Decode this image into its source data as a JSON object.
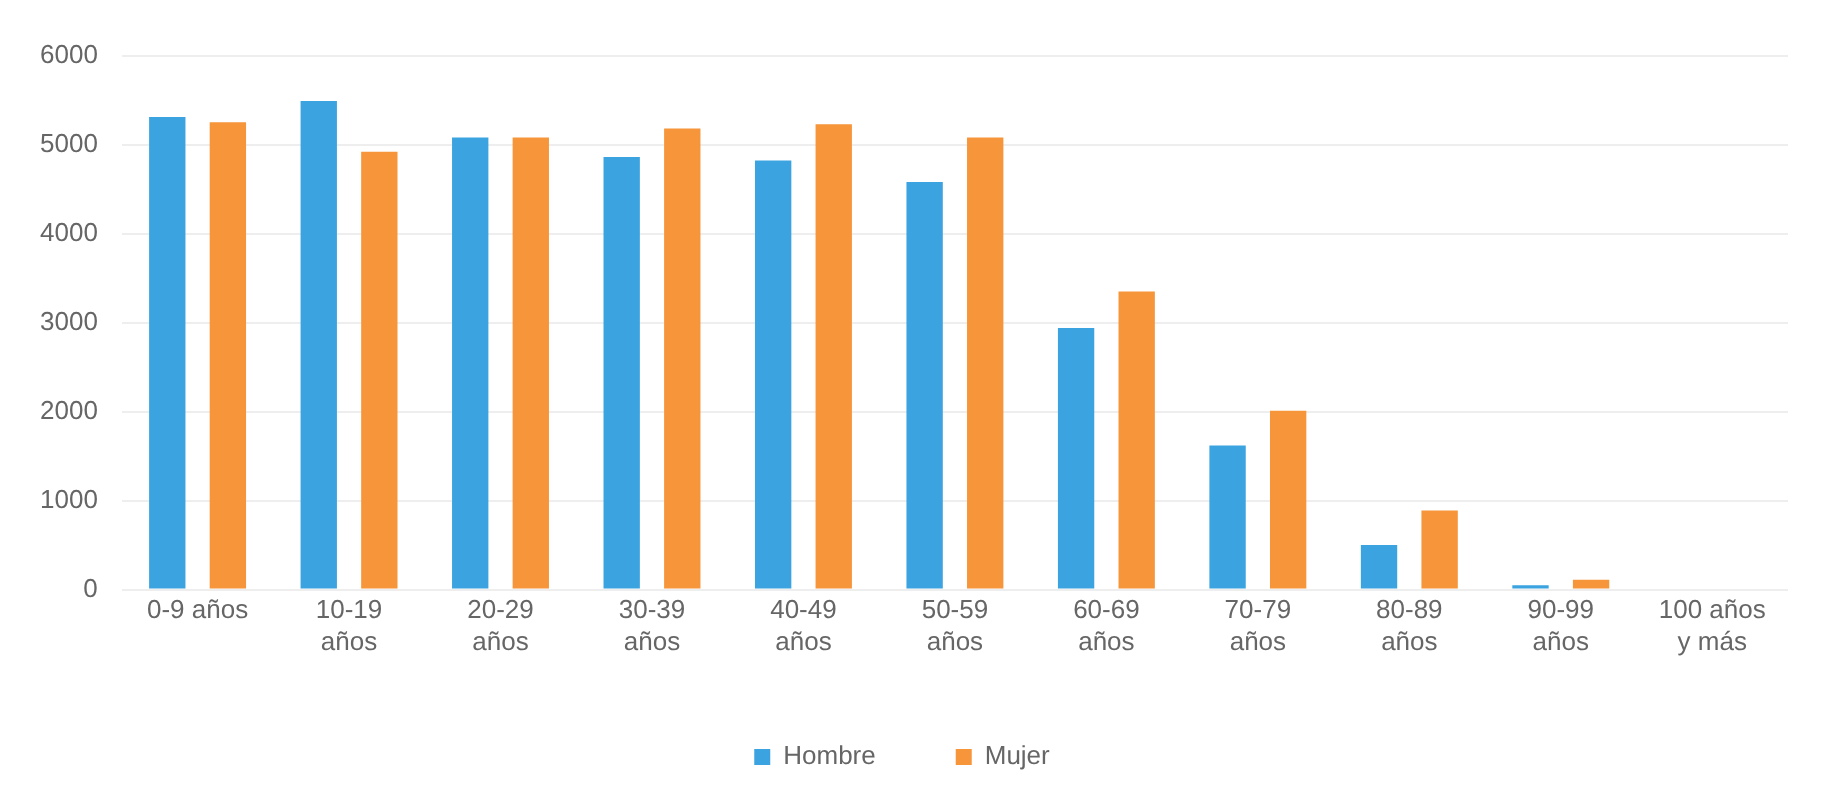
{
  "chart_data": {
    "type": "bar",
    "categories": [
      "0-9 años",
      "10-19 años",
      "20-29 años",
      "30-39 años",
      "40-49 años",
      "50-59 años",
      "60-69 años",
      "70-79 años",
      "80-89 años",
      "90-99 años",
      "100 años y más"
    ],
    "series": [
      {
        "name": "Hombre",
        "color": "#3ba3e0",
        "values": [
          5310,
          5490,
          5080,
          4860,
          4820,
          4580,
          2940,
          1620,
          500,
          50,
          0
        ]
      },
      {
        "name": "Mujer",
        "color": "#f7953b",
        "values": [
          5250,
          4920,
          5080,
          5180,
          5230,
          5080,
          3350,
          2010,
          890,
          110,
          0
        ]
      }
    ],
    "ylim": [
      0,
      6000
    ],
    "yticks": [
      0,
      1000,
      2000,
      3000,
      4000,
      5000,
      6000
    ],
    "grid": "y",
    "legend": "bottom"
  }
}
